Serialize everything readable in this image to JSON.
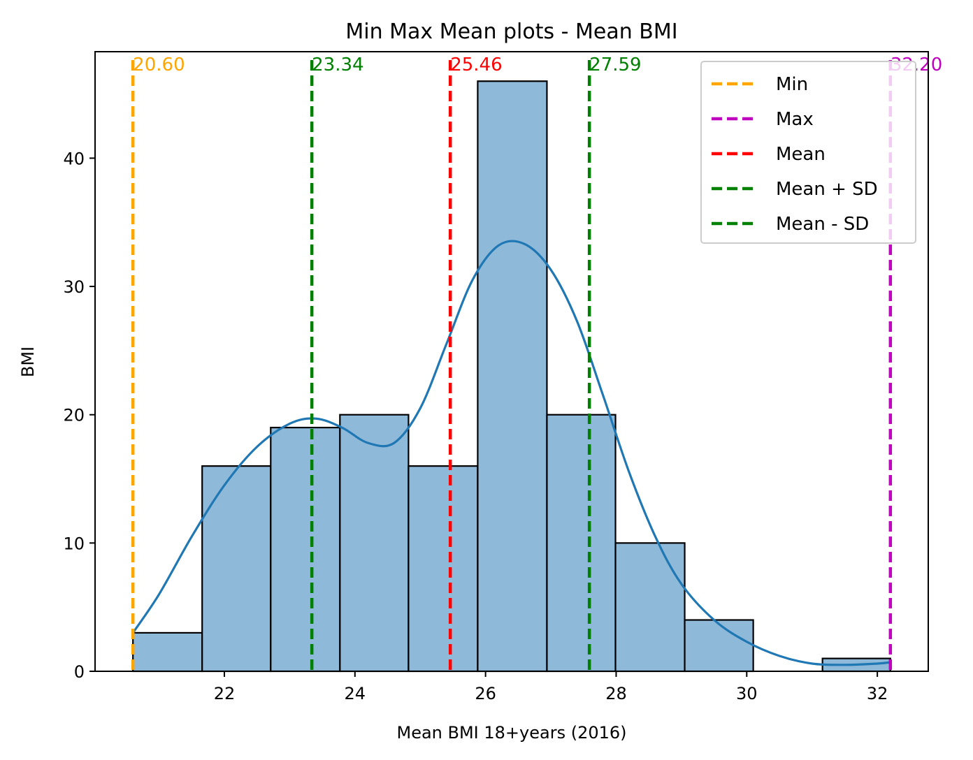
{
  "chart_data": {
    "type": "bar",
    "title": "Min Max Mean plots - Mean BMI",
    "xlabel": "Mean BMI 18+years (2016)",
    "ylabel": "BMI",
    "xlim": [
      20.02,
      32.78
    ],
    "ylim": [
      0,
      48.3
    ],
    "xticks": [
      22,
      24,
      26,
      28,
      30,
      32
    ],
    "yticks": [
      0,
      10,
      20,
      30,
      40
    ],
    "bins": [
      {
        "x0": 20.6,
        "x1": 21.66,
        "count": 3
      },
      {
        "x0": 21.66,
        "x1": 22.71,
        "count": 16
      },
      {
        "x0": 22.71,
        "x1": 23.77,
        "count": 19
      },
      {
        "x0": 23.77,
        "x1": 24.82,
        "count": 20
      },
      {
        "x0": 24.82,
        "x1": 25.88,
        "count": 16
      },
      {
        "x0": 25.88,
        "x1": 26.94,
        "count": 46
      },
      {
        "x0": 26.94,
        "x1": 27.99,
        "count": 20
      },
      {
        "x0": 27.99,
        "x1": 29.05,
        "count": 10
      },
      {
        "x0": 29.05,
        "x1": 30.1,
        "count": 4
      },
      {
        "x0": 30.1,
        "x1": 31.16,
        "count": 0
      },
      {
        "x0": 31.16,
        "x1": 32.2,
        "count": 1
      }
    ],
    "kde": {
      "x": [
        20.6,
        21.0,
        21.5,
        22.0,
        22.5,
        23.0,
        23.4,
        23.8,
        24.2,
        24.6,
        25.0,
        25.4,
        25.8,
        26.2,
        26.6,
        27.0,
        27.4,
        27.8,
        28.2,
        28.6,
        29.0,
        29.5,
        30.0,
        30.5,
        31.0,
        31.5,
        32.0,
        32.2
      ],
      "y": [
        3.0,
        6.0,
        10.5,
        14.5,
        17.5,
        19.3,
        19.7,
        19.0,
        17.8,
        17.8,
        20.5,
        25.5,
        30.5,
        33.2,
        33.3,
        31.3,
        27.3,
        21.5,
        15.5,
        10.5,
        6.8,
        4.0,
        2.3,
        1.2,
        0.6,
        0.5,
        0.6,
        0.7
      ]
    },
    "reference_lines": [
      {
        "name": "Min",
        "value": 20.6,
        "label": "20.60",
        "color": "#ffa500"
      },
      {
        "name": "Mean - SD",
        "value": 23.34,
        "label": "23.34",
        "color": "#008000"
      },
      {
        "name": "Mean",
        "value": 25.46,
        "label": "25.46",
        "color": "#ff0000"
      },
      {
        "name": "Mean + SD",
        "value": 27.59,
        "label": "27.59",
        "color": "#008000"
      },
      {
        "name": "Max",
        "value": 32.2,
        "label": "32.20",
        "color": "#bf00bf"
      }
    ],
    "legend": {
      "placement": "top-right",
      "entries": [
        {
          "label": "Min",
          "color": "#ffa500"
        },
        {
          "label": "Max",
          "color": "#bf00bf"
        },
        {
          "label": "Mean",
          "color": "#ff0000"
        },
        {
          "label": "Mean + SD",
          "color": "#008000"
        },
        {
          "label": "Mean - SD",
          "color": "#008000"
        }
      ]
    },
    "colors": {
      "bar_fill": "#8fb9d9",
      "bar_edge": "#000000",
      "kde_line": "#1f77b4"
    }
  }
}
